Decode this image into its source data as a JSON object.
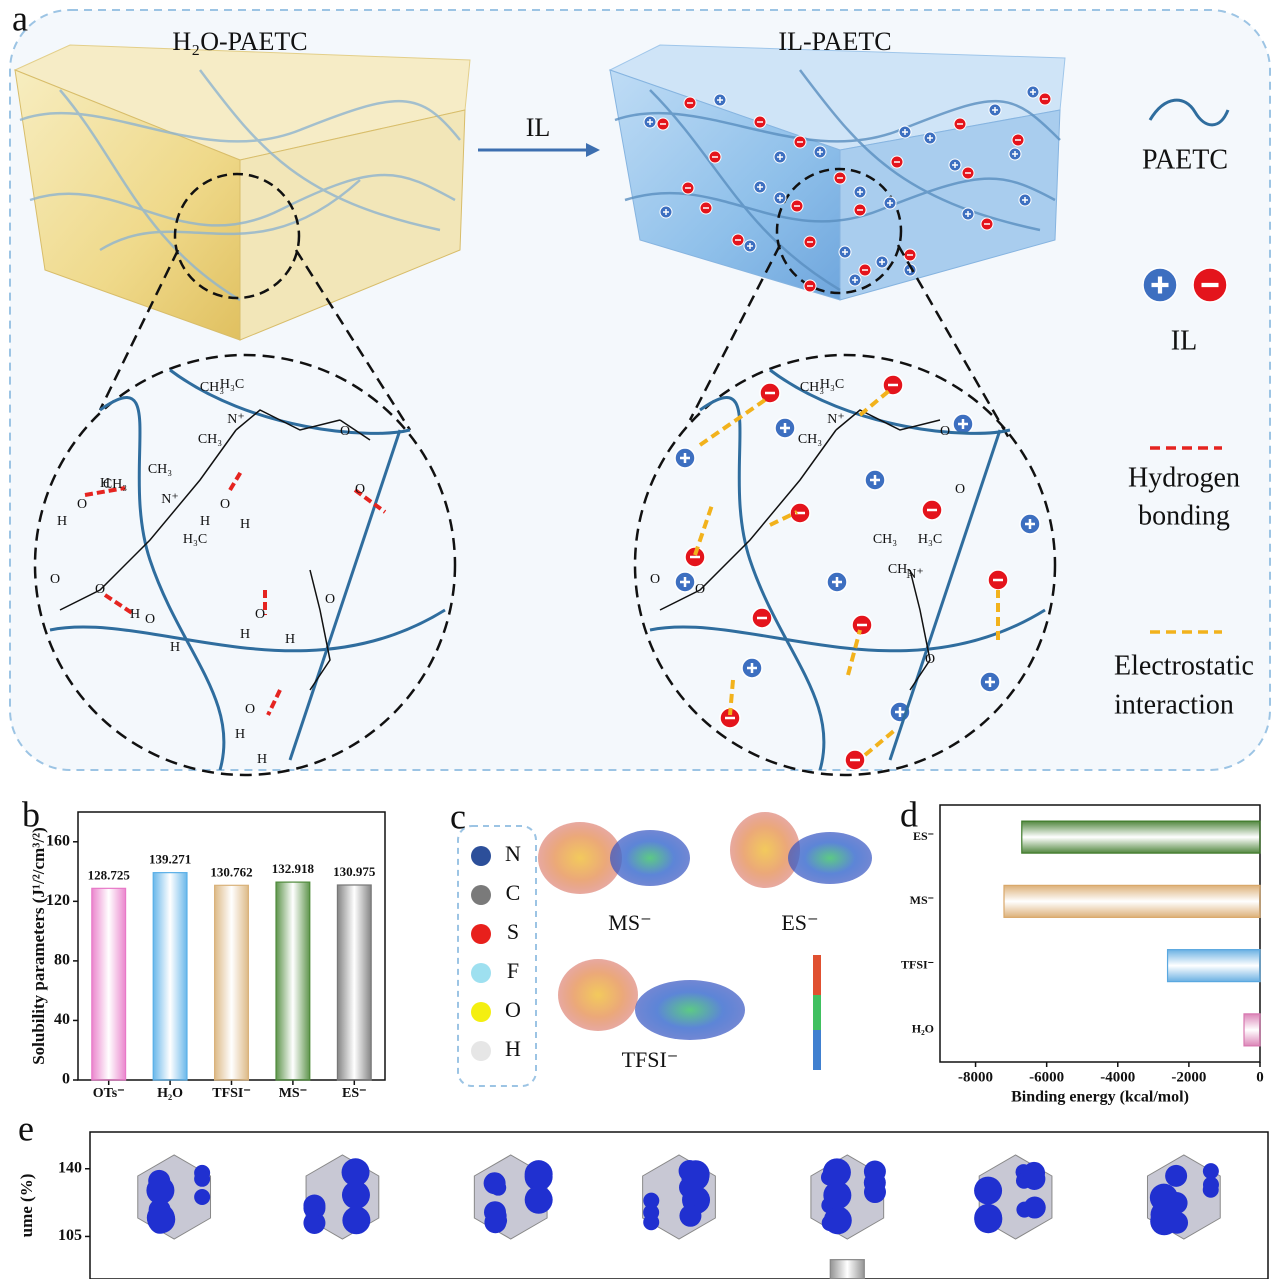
{
  "panel_labels": [
    "a",
    "b",
    "c",
    "d",
    "e"
  ],
  "panel_a": {
    "left_title": "H₂O-PAETC",
    "right_title": "IL-PAETC",
    "arrow_label": "IL",
    "legend": [
      "PAETC",
      "IL",
      "Hydrogen",
      "bonding",
      "Electrostatic",
      "interaction"
    ],
    "left_structure_labels": [
      "H₃C",
      "N⁺",
      "CH₃",
      "CH₃",
      "O",
      "O",
      "H₃C",
      "N⁺",
      "CH₃",
      "CH₃",
      "O",
      "O",
      "O"
    ],
    "left_water_labels": [
      "H",
      "O",
      "H",
      "H",
      "O",
      "H",
      "O",
      "H",
      "H",
      "H",
      "O",
      "H",
      "H",
      "O",
      "H"
    ],
    "right_structure_labels": [
      "H₃C",
      "N⁺",
      "CH₃",
      "CH₃",
      "O",
      "O",
      "H₃C",
      "N⁺",
      "CH₃",
      "CH₃",
      "O",
      "O",
      "O"
    ]
  },
  "panel_c": {
    "elements": [
      {
        "symbol": "N",
        "color": "#2c4f9a"
      },
      {
        "symbol": "C",
        "color": "#7a7a7a"
      },
      {
        "symbol": "S",
        "color": "#e8201c"
      },
      {
        "symbol": "F",
        "color": "#9ee0f0"
      },
      {
        "symbol": "O",
        "color": "#f4ef10"
      },
      {
        "symbol": "H",
        "color": "#e6e6e6"
      }
    ],
    "molecules": [
      "MS⁻",
      "ES⁻",
      "TFSI⁻"
    ]
  },
  "chart_data": [
    {
      "type": "bar",
      "y_label": "Solubility parameters (J¹/²/cm³/²)",
      "categories": [
        "OTs⁻",
        "H₂O",
        "TFSI⁻",
        "MS⁻",
        "ES⁻"
      ],
      "values": [
        128.725,
        139.271,
        130.762,
        132.918,
        130.975
      ],
      "colors": [
        "#e879c8",
        "#5ab0e8",
        "#d9b27a",
        "#4e8a3a",
        "#777777"
      ],
      "data_labels": true,
      "ylim": [
        0,
        180
      ],
      "yticks": [
        0,
        40,
        80,
        120,
        160
      ]
    },
    {
      "type": "hbar",
      "x_label": "Binding energy (kcal/mol)",
      "categories": [
        "ES⁻",
        "MS⁻",
        "TFSI⁻",
        "H₂O"
      ],
      "values": [
        -6700,
        -7200,
        -2600,
        -450
      ],
      "colors": [
        "#3f7a2a",
        "#d9a86a",
        "#5aa8e0",
        "#d878b0"
      ],
      "xlim": [
        -9000,
        0
      ],
      "xticks": [
        -8000,
        -6000,
        -4000,
        -2000,
        0
      ]
    },
    {
      "type": "bar",
      "y_label": "ume (%)",
      "categories": [
        null,
        null,
        null,
        null,
        null,
        null,
        null
      ],
      "values": [
        null,
        null,
        null,
        null,
        93,
        null,
        null
      ],
      "colors": [
        "#888888",
        "#888888",
        "#888888",
        "#888888",
        "#888888",
        "#888888",
        "#888888"
      ],
      "ylim": [
        83,
        159
      ],
      "yticks": [
        105,
        140
      ]
    }
  ]
}
